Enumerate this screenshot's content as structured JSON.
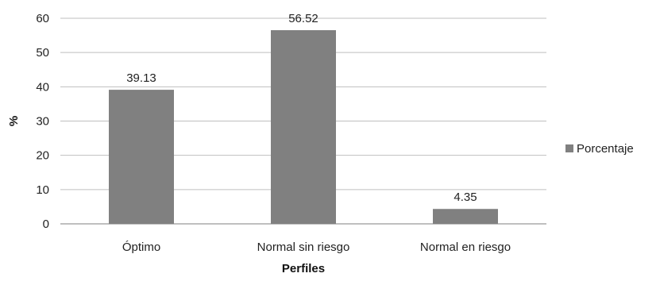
{
  "chart_data": {
    "type": "bar",
    "categories": [
      "Óptimo",
      "Normal sin riesgo",
      "Normal en riesgo"
    ],
    "series": [
      {
        "name": "Porcentaje",
        "values": [
          39.13,
          56.52,
          4.35
        ],
        "color": "#808080"
      }
    ],
    "data_labels": [
      "39.13",
      "56.52",
      "4.35"
    ],
    "xlabel": "Perfiles",
    "ylabel": "%",
    "ylim": [
      0,
      60
    ],
    "yticks": [
      0,
      10,
      20,
      30,
      40,
      50,
      60
    ],
    "grid": true,
    "legend_position": "right"
  }
}
